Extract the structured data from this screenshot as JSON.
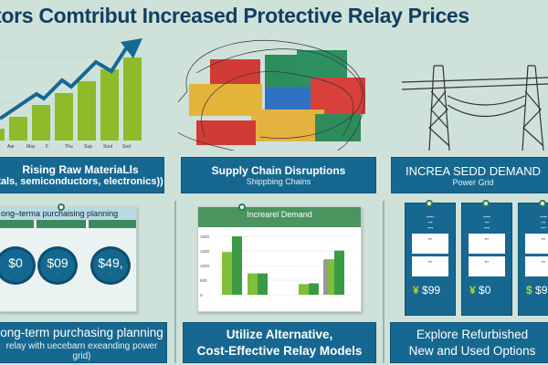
{
  "title": "tors Comtribut Increased Protective Relay Prices",
  "colors": {
    "banner": "#166891",
    "green": "#8dbb2a",
    "title": "#123f60"
  },
  "trend_chart": {
    "labels": [
      "Aar",
      "May",
      "F",
      "Thu",
      "Sup",
      "Sout",
      "Sod"
    ],
    "bars": [
      1,
      2,
      3,
      4,
      5,
      6,
      7
    ]
  },
  "top_banners": [
    {
      "heading": "Rising Raw MateriaLls",
      "sub": "tals, semiconductors, electronics))"
    },
    {
      "heading": "Supply Chain Disruptions",
      "sub": "Shippbing Chains"
    },
    {
      "heading": "INCREA SEDD DEMAND",
      "sub": "Power Grid"
    }
  ],
  "card1": {
    "header": "ong–terma purchaising planning",
    "coins": [
      "$0",
      "$09",
      "$49,"
    ]
  },
  "card2": {
    "header": "Increarel Demand",
    "y_ticks": [
      "1500",
      "1000",
      "1000",
      "500",
      "0"
    ],
    "groups": [
      [
        60,
        82
      ],
      [
        30,
        30
      ],
      [
        0,
        0
      ],
      [
        15,
        16
      ],
      [
        50,
        62
      ]
    ]
  },
  "price_cards": [
    {
      "price": "$99",
      "cur": "¥"
    },
    {
      "price": "$0",
      "cur": "¥"
    },
    {
      "price": "$9",
      "cur": "$"
    }
  ],
  "bottom_banners": [
    {
      "heading": "ong-term purchasing planning",
      "sub": "relay with uecebarn exeanding power grid)"
    },
    {
      "heading": "Utilize Alternative,",
      "sub": "Cost-Effective Relay Models"
    },
    {
      "heading": "Explore Refurbished",
      "sub": "New and Used Options"
    }
  ]
}
